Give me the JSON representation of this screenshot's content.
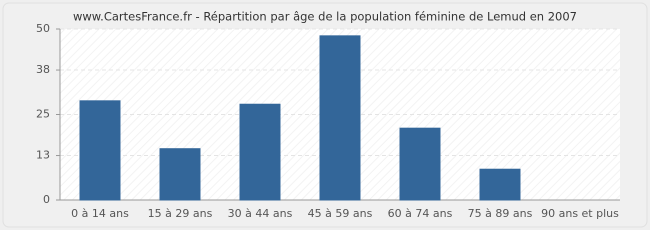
{
  "chart_data": {
    "type": "bar",
    "title": "www.CartesFrance.fr - Répartition par âge de la population féminine de Lemud en 2007",
    "categories": [
      "0 à 14 ans",
      "15 à 29 ans",
      "30 à 44 ans",
      "45 à 59 ans",
      "60 à 74 ans",
      "75 à 89 ans",
      "90 ans et plus"
    ],
    "values": [
      29,
      15,
      28,
      48,
      21,
      9,
      0
    ],
    "color": "#336699",
    "ylim": [
      0,
      50
    ],
    "yticks": [
      0,
      13,
      25,
      38,
      50
    ],
    "grid": true
  }
}
